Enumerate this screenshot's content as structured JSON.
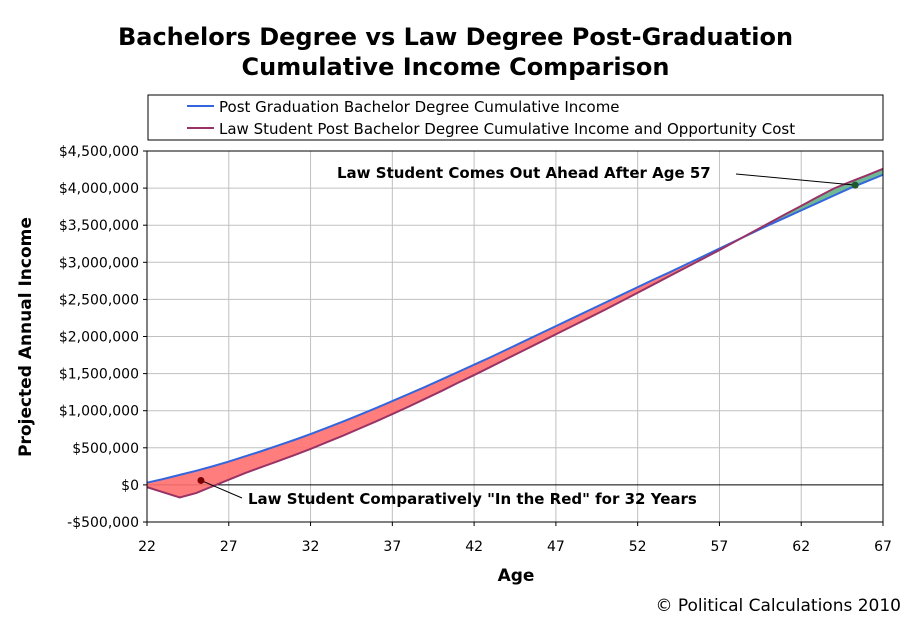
{
  "chart_data": {
    "type": "line",
    "title_line1": "Bachelors Degree vs Law Degree Post-Graduation",
    "title_line2": "Cumulative Income Comparison",
    "xlabel": "Age",
    "ylabel": "Projected Annual Income",
    "xlim": [
      22,
      67
    ],
    "ylim": [
      -500000,
      4500000
    ],
    "x_ticks": [
      22,
      27,
      32,
      37,
      42,
      47,
      52,
      57,
      62,
      67
    ],
    "y_ticks": [
      {
        "value": -500000,
        "label": "-$500,000"
      },
      {
        "value": 0,
        "label": "$0"
      },
      {
        "value": 500000,
        "label": "$500,000"
      },
      {
        "value": 1000000,
        "label": "$1,000,000"
      },
      {
        "value": 1500000,
        "label": "$1,500,000"
      },
      {
        "value": 2000000,
        "label": "$2,000,000"
      },
      {
        "value": 2500000,
        "label": "$2,500,000"
      },
      {
        "value": 3000000,
        "label": "$3,000,000"
      },
      {
        "value": 3500000,
        "label": "$3,500,000"
      },
      {
        "value": 4000000,
        "label": "$4,000,000"
      },
      {
        "value": 4500000,
        "label": "$4,500,000"
      }
    ],
    "grid": true,
    "legend_position": "top",
    "series": [
      {
        "name": "Post Graduation Bachelor Degree Cumulative Income",
        "color": "#3366dd",
        "x": [
          22,
          23,
          24,
          25,
          26,
          27,
          28,
          29,
          30,
          31,
          32,
          33,
          34,
          35,
          36,
          37,
          38,
          39,
          40,
          41,
          42,
          43,
          44,
          45,
          46,
          47,
          48,
          49,
          50,
          51,
          52,
          53,
          54,
          55,
          56,
          57,
          58,
          59,
          60,
          61,
          62,
          63,
          64,
          65,
          66,
          67
        ],
        "y": [
          30000,
          80000,
          135000,
          190000,
          250000,
          315000,
          385000,
          455000,
          530000,
          605000,
          685000,
          770000,
          855000,
          945000,
          1035000,
          1130000,
          1225000,
          1320000,
          1420000,
          1520000,
          1620000,
          1720000,
          1825000,
          1930000,
          2035000,
          2140000,
          2245000,
          2350000,
          2455000,
          2560000,
          2665000,
          2770000,
          2870000,
          2975000,
          3080000,
          3185000,
          3290000,
          3395000,
          3500000,
          3600000,
          3700000,
          3800000,
          3900000,
          4000000,
          4090000,
          4180000
        ]
      },
      {
        "name": "Law Student Post Bachelor Degree Cumulative Income and Opportunity Cost",
        "color": "#993366",
        "x": [
          22,
          23,
          24,
          25,
          26,
          27,
          28,
          29,
          30,
          31,
          32,
          33,
          34,
          35,
          36,
          37,
          38,
          39,
          40,
          41,
          42,
          43,
          44,
          45,
          46,
          47,
          48,
          49,
          50,
          51,
          52,
          53,
          54,
          55,
          56,
          57,
          58,
          59,
          60,
          61,
          62,
          63,
          64,
          65,
          66,
          67
        ],
        "y": [
          -30000,
          -100000,
          -170000,
          -110000,
          -20000,
          70000,
          160000,
          240000,
          320000,
          400000,
          485000,
          575000,
          665000,
          760000,
          855000,
          955000,
          1055000,
          1160000,
          1265000,
          1375000,
          1480000,
          1590000,
          1700000,
          1810000,
          1920000,
          2030000,
          2140000,
          2250000,
          2360000,
          2475000,
          2590000,
          2705000,
          2820000,
          2935000,
          3050000,
          3165000,
          3285000,
          3405000,
          3525000,
          3645000,
          3760000,
          3880000,
          3995000,
          4085000,
          4170000,
          4260000
        ]
      }
    ],
    "annotations": [
      {
        "text": "Law Student Comparatively \"In the Red\" for 32 Years",
        "point": [
          25.3,
          60000
        ]
      },
      {
        "text": "Law Student Comes Out Ahead After Age 57",
        "point": [
          65.3,
          4040000
        ]
      }
    ],
    "credit": "© Political Calculations 2010",
    "negative_fill_color": "#ff6f6f",
    "positive_fill_color": "#5fb08a"
  }
}
